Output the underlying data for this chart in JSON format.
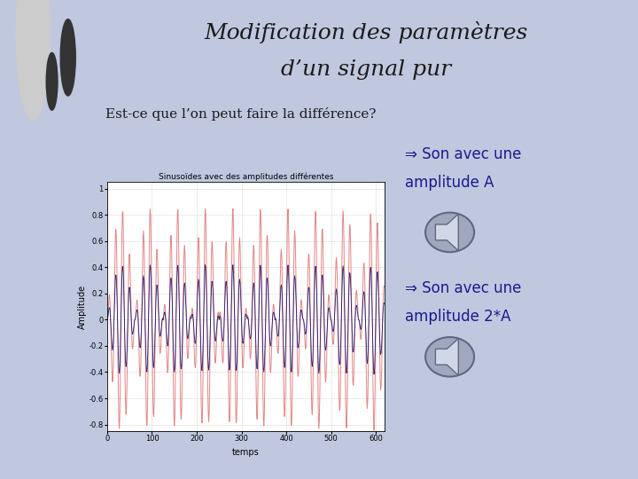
{
  "title_line1": "Modification des paramètres",
  "title_line2": "d’un signal pur",
  "subtitle": "Est-ce que l’on peut faire la différence?",
  "plot_title": "Sinusoïdes avec des amplitudes différentes",
  "xlabel": "temps",
  "ylabel": "Amplitude",
  "xticks": [
    0,
    100,
    200,
    300,
    400,
    500,
    600
  ],
  "ylim": [
    -0.85,
    1.05
  ],
  "xlim": [
    0,
    620
  ],
  "text1": "⇒ Son avec une\namplitude A",
  "text2": "⇒ Son avec une\namplitude 2*A",
  "bg_color": "#bfc8df",
  "sidebar_color": "#dde0ea",
  "plot_area_color": "#ffffff",
  "text_color": "#1a1a8c",
  "title_color": "#1a1a1a",
  "signal1_color": "#cc2222",
  "signal2_color": "#000066",
  "signal1_alpha": 0.55,
  "signal2_alpha": 0.85,
  "freq_carrier": 0.065,
  "freq_mod": 0.008,
  "amplitude1": 0.85,
  "amplitude2": 0.42,
  "n_samples": 620
}
